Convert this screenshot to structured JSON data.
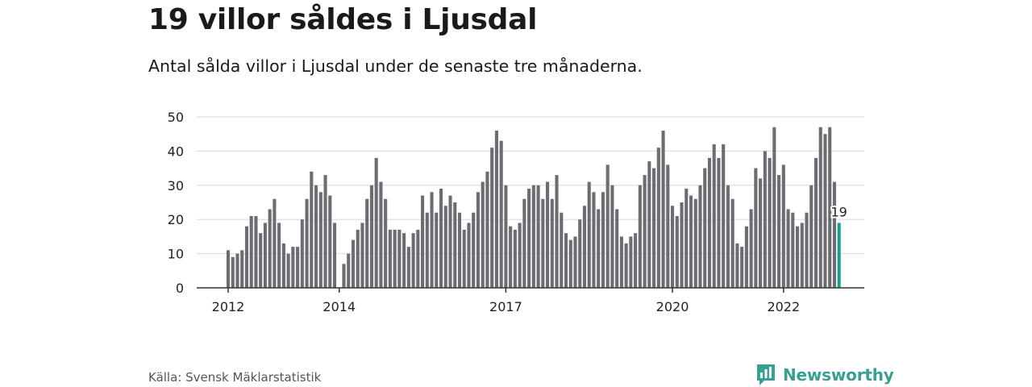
{
  "title": "19 villor såldes i Ljusdal",
  "subtitle": "Antal sålda villor i Ljusdal under de senaste tre månaderna.",
  "source": "Källa: Svensk Mäklarstatistik",
  "brand": {
    "name": "Newsworthy",
    "icon": "newsworthy-logo-icon",
    "color": "#3a9e94"
  },
  "chart_data": {
    "type": "bar",
    "title": "19 villor såldes i Ljusdal",
    "subtitle": "Antal sålda villor i Ljusdal under de senaste tre månaderna.",
    "ylim": [
      0,
      50
    ],
    "yticks": [
      0,
      10,
      20,
      30,
      40,
      50
    ],
    "xticks": [
      {
        "label": "2012",
        "index": 0
      },
      {
        "label": "2014",
        "index": 24
      },
      {
        "label": "2017",
        "index": 60
      },
      {
        "label": "2020",
        "index": 96
      },
      {
        "label": "2022",
        "index": 120
      }
    ],
    "grid": true,
    "bar_color": "#6d6c72",
    "highlight_color": "#1a9e8f",
    "highlight_label": "19",
    "start": "2012-01",
    "frequency": "monthly",
    "values": [
      11,
      9,
      10,
      11,
      18,
      21,
      21,
      16,
      19,
      23,
      26,
      19,
      13,
      10,
      12,
      12,
      20,
      26,
      34,
      30,
      28,
      33,
      27,
      19,
      null,
      7,
      10,
      14,
      17,
      19,
      26,
      30,
      38,
      31,
      26,
      17,
      17,
      17,
      16,
      12,
      16,
      17,
      27,
      22,
      28,
      22,
      29,
      24,
      27,
      25,
      22,
      17,
      19,
      22,
      28,
      31,
      34,
      41,
      46,
      43,
      30,
      18,
      17,
      19,
      26,
      29,
      30,
      30,
      26,
      31,
      26,
      33,
      22,
      16,
      14,
      15,
      20,
      24,
      31,
      28,
      23,
      28,
      36,
      30,
      23,
      15,
      13,
      15,
      16,
      30,
      33,
      37,
      35,
      41,
      46,
      36,
      24,
      21,
      25,
      29,
      27,
      26,
      30,
      35,
      38,
      42,
      38,
      42,
      30,
      26,
      13,
      12,
      18,
      23,
      35,
      32,
      40,
      38,
      47,
      33,
      36,
      23,
      22,
      18,
      19,
      22,
      30,
      38,
      47,
      45,
      47,
      31,
      19
    ]
  }
}
